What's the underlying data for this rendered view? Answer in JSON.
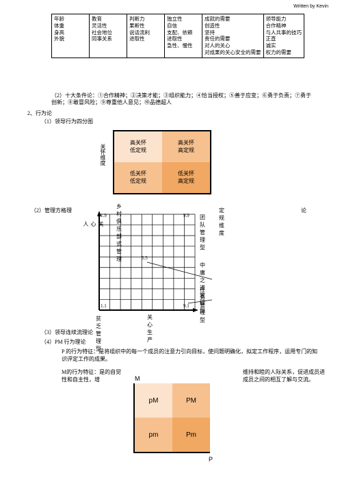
{
  "byline": "Written by Kevin",
  "traitTable": {
    "cols": [
      [
        "年龄",
        "体重",
        "身高",
        "外貌"
      ],
      [
        "教育",
        "灵活性",
        "社会地位",
        "同事关系"
      ],
      [
        "判断力",
        "果断性",
        "说话流利",
        "进取性"
      ],
      [
        "独立性",
        "自信",
        "支配、依赖",
        "进取性",
        "急性、慢性"
      ],
      [
        "成就的需要",
        "创造性",
        "坚持",
        "责任的需要",
        "对人的关心",
        "对成果的关心安全的需要"
      ],
      [
        "领导能力",
        "合作精神",
        "与人共事的技巧",
        "正直",
        "诚实",
        "权力的需要"
      ]
    ]
  },
  "tenCond": "（2）十大条件论：①合作精神；②决策才能；③组织能力；④恰当授权；⑤善于应变；⑥勇于负责；⑦勇于创新；⑧敢冒风险；⑨尊重他人意见；⑩品德超人",
  "sec2": "2、行为论",
  "sub1": "（1）领导行为四分图",
  "quadA": {
    "ylab": "关怀维度",
    "cells": [
      {
        "l1": "高关怀",
        "l2": "低定规",
        "cls": "c-light"
      },
      {
        "l1": "高关怀",
        "l2": "高定规",
        "cls": "c-med"
      },
      {
        "l1": "低关怀",
        "l2": "低定规",
        "cls": "c-med"
      },
      {
        "l1": "低关怀",
        "l2": "高定规",
        "cls": "c-dark"
      }
    ]
  },
  "sub2": "（2）管理方格理",
  "lun": "论",
  "mgrid": {
    "topLabel": "乡村俱乐部式管理",
    "ylab": "关心人",
    "rightLabel1": "团队\n管理型",
    "rightLabel1x": "定规维度",
    "rightLabel2": "中庸之道\n管理型",
    "rightLabel3": "任务管理型",
    "bottomLabel": "关心生产",
    "leftBottom": "贫乏管理型",
    "tl": "1.9",
    "tr": "9.9",
    "bl": "1.1",
    "br": "9.1",
    "mid": "5.5"
  },
  "sub3": "（3）领导连续流理论",
  "sub4": "（4）PM 行为理论",
  "pText": "P 的行为特征：是将组织中的每一个成员的注意力引向目标，使问题明确化，拟定工作程序，运用专门的知识评定工作的成果。",
  "mTextL": "M的行为特征：是的自觉性和自主性，增",
  "mTextR": "维持和睦的人际关系，促进成员进成员之间的相互了解与交流。",
  "pm": {
    "ylab": "M",
    "xlab": "P",
    "cells": [
      {
        "t": "pM",
        "cls": "c-light"
      },
      {
        "t": "PM",
        "cls": "c-med"
      },
      {
        "t": "pm",
        "cls": "c-med"
      },
      {
        "t": "Pm",
        "cls": "c-dark"
      }
    ]
  }
}
